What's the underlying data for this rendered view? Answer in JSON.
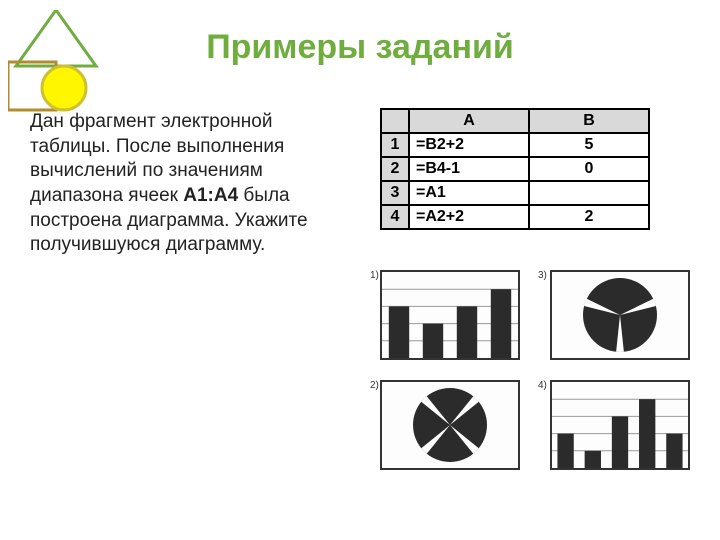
{
  "title": {
    "text": "Примеры заданий",
    "color": "#70ad3f",
    "fontsize": 34
  },
  "body": {
    "pre": "Дан фрагмент электронной таблицы. После выполнения вычислений по значениям диапазона ячеек ",
    "bold": "А1:А4",
    "post": " была построена диаграмма. Укажите получившуюся диаграмму.",
    "fontsize": 19,
    "color": "#222222"
  },
  "spreadsheet": {
    "headers": [
      "",
      "A",
      "B"
    ],
    "rows": [
      [
        "1",
        "=B2+2",
        "5"
      ],
      [
        "2",
        "=B4-1",
        "0"
      ],
      [
        "3",
        "=A1",
        ""
      ],
      [
        "4",
        "=A2+2",
        "2"
      ]
    ],
    "fontsize": 16,
    "header_bg": "#d9d9d9",
    "border_color": "#000000"
  },
  "charts": {
    "labels": [
      "1)",
      "2)",
      "3)",
      "4)"
    ],
    "items": [
      {
        "type": "bar",
        "values": [
          3,
          2,
          3,
          4
        ],
        "max": 5,
        "bar_color": "#2b2b2b",
        "grid_color": "#999999"
      },
      {
        "type": "pie",
        "slices": [
          90,
          90,
          90,
          90
        ],
        "rotate": 45,
        "fill_color": "#2b2b2b"
      },
      {
        "type": "pie",
        "slices": [
          140,
          110,
          110
        ],
        "rotate": 200,
        "fill_color": "#2b2b2b"
      },
      {
        "type": "bar",
        "values": [
          2,
          1,
          3,
          4,
          2
        ],
        "max": 5,
        "bar_color": "#2b2b2b",
        "grid_color": "#999999"
      }
    ]
  },
  "deco": {
    "triangle_color": "#70ad3f",
    "square_color": "#b08c2e",
    "circle_fill": "#fff600",
    "circle_stroke": "#d0c030"
  }
}
